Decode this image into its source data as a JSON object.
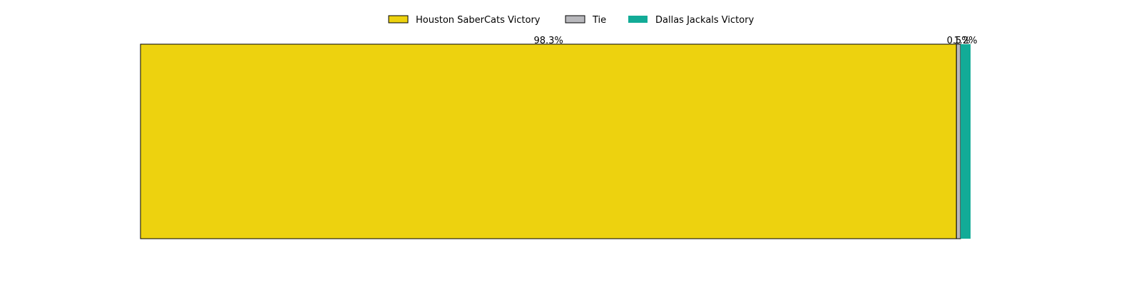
{
  "chart_data": {
    "type": "bar",
    "orientation": "horizontal",
    "stacked": true,
    "title": "",
    "xlabel": "",
    "ylabel": "",
    "xlim": [
      0,
      100
    ],
    "grid": false,
    "axes_visible": false,
    "legend_position": "top-center",
    "series": [
      {
        "name": "Houston SaberCats Victory",
        "value": 98.3,
        "label": "98.3%",
        "color": "#edd20f",
        "edge_color": "#000000"
      },
      {
        "name": "Tie",
        "value": 0.5,
        "label": "0.5%",
        "color": "#b8b8bc",
        "edge_color": "#000000"
      },
      {
        "name": "Dallas Jackals Victory",
        "value": 1.2,
        "label": "1.2%",
        "color": "#12ab97",
        "edge_color": "none"
      }
    ]
  }
}
